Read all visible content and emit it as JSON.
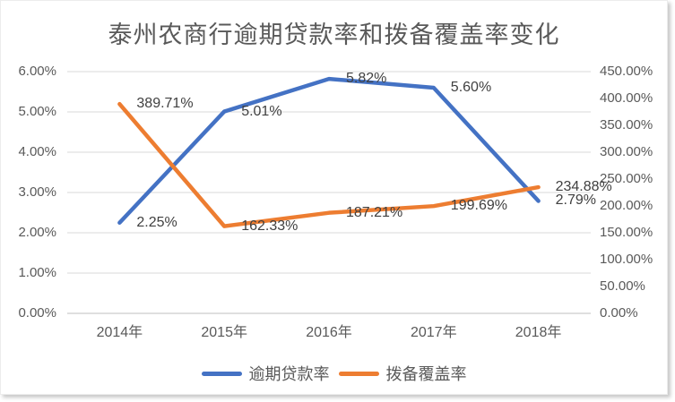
{
  "chart_data": {
    "type": "line",
    "title": "泰州农商行逾期贷款率和拨备覆盖率变化",
    "categories": [
      "2014年",
      "2015年",
      "2016年",
      "2017年",
      "2018年"
    ],
    "series": [
      {
        "name": "逾期贷款率",
        "axis": "left",
        "color": "#4472C4",
        "values": [
          2.25,
          5.01,
          5.82,
          5.6,
          2.79
        ],
        "labels": [
          "2.25%",
          "5.01%",
          "5.82%",
          "5.60%",
          "2.79%"
        ]
      },
      {
        "name": "拨备覆盖率",
        "axis": "right",
        "color": "#ED7D31",
        "values": [
          389.71,
          162.33,
          187.21,
          199.69,
          234.88
        ],
        "labels": [
          "389.71%",
          "162.33%",
          "187.21%",
          "199.69%",
          "234.88%"
        ]
      }
    ],
    "left_axis": {
      "min": 0,
      "max": 6,
      "step": 1,
      "ticks": [
        "0.00%",
        "1.00%",
        "2.00%",
        "3.00%",
        "4.00%",
        "5.00%",
        "6.00%"
      ]
    },
    "right_axis": {
      "min": 0,
      "max": 450,
      "step": 50,
      "ticks": [
        "0.00%",
        "50.00%",
        "100.00%",
        "150.00%",
        "200.00%",
        "250.00%",
        "300.00%",
        "350.00%",
        "400.00%",
        "450.00%"
      ]
    },
    "grid": true,
    "legend_position": "bottom",
    "gridline_color": "#D9D9D9",
    "axis_line_color": "#BFBFBF"
  }
}
